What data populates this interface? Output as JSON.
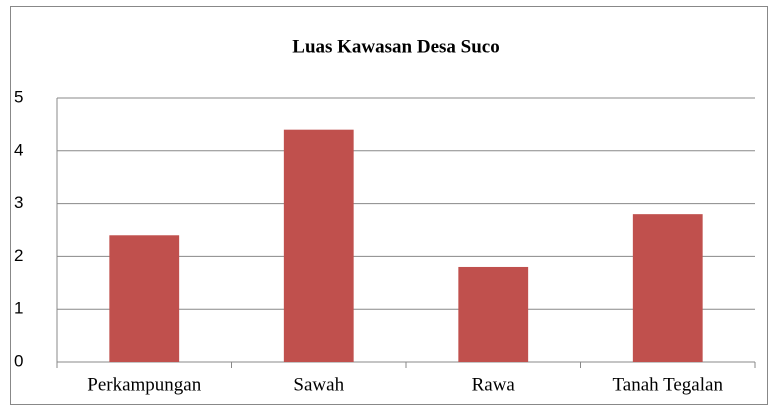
{
  "chart_data": {
    "type": "bar",
    "title": "Luas Kawasan Desa Suco",
    "categories": [
      "Perkampungan",
      "Sawah",
      "Rawa",
      "Tanah Tegalan"
    ],
    "values": [
      2.4,
      4.4,
      1.8,
      2.8
    ],
    "color": "#c0504d",
    "ylim": [
      0,
      5
    ],
    "yticks": [
      0,
      1,
      2,
      3,
      4,
      5
    ],
    "grid": true
  }
}
